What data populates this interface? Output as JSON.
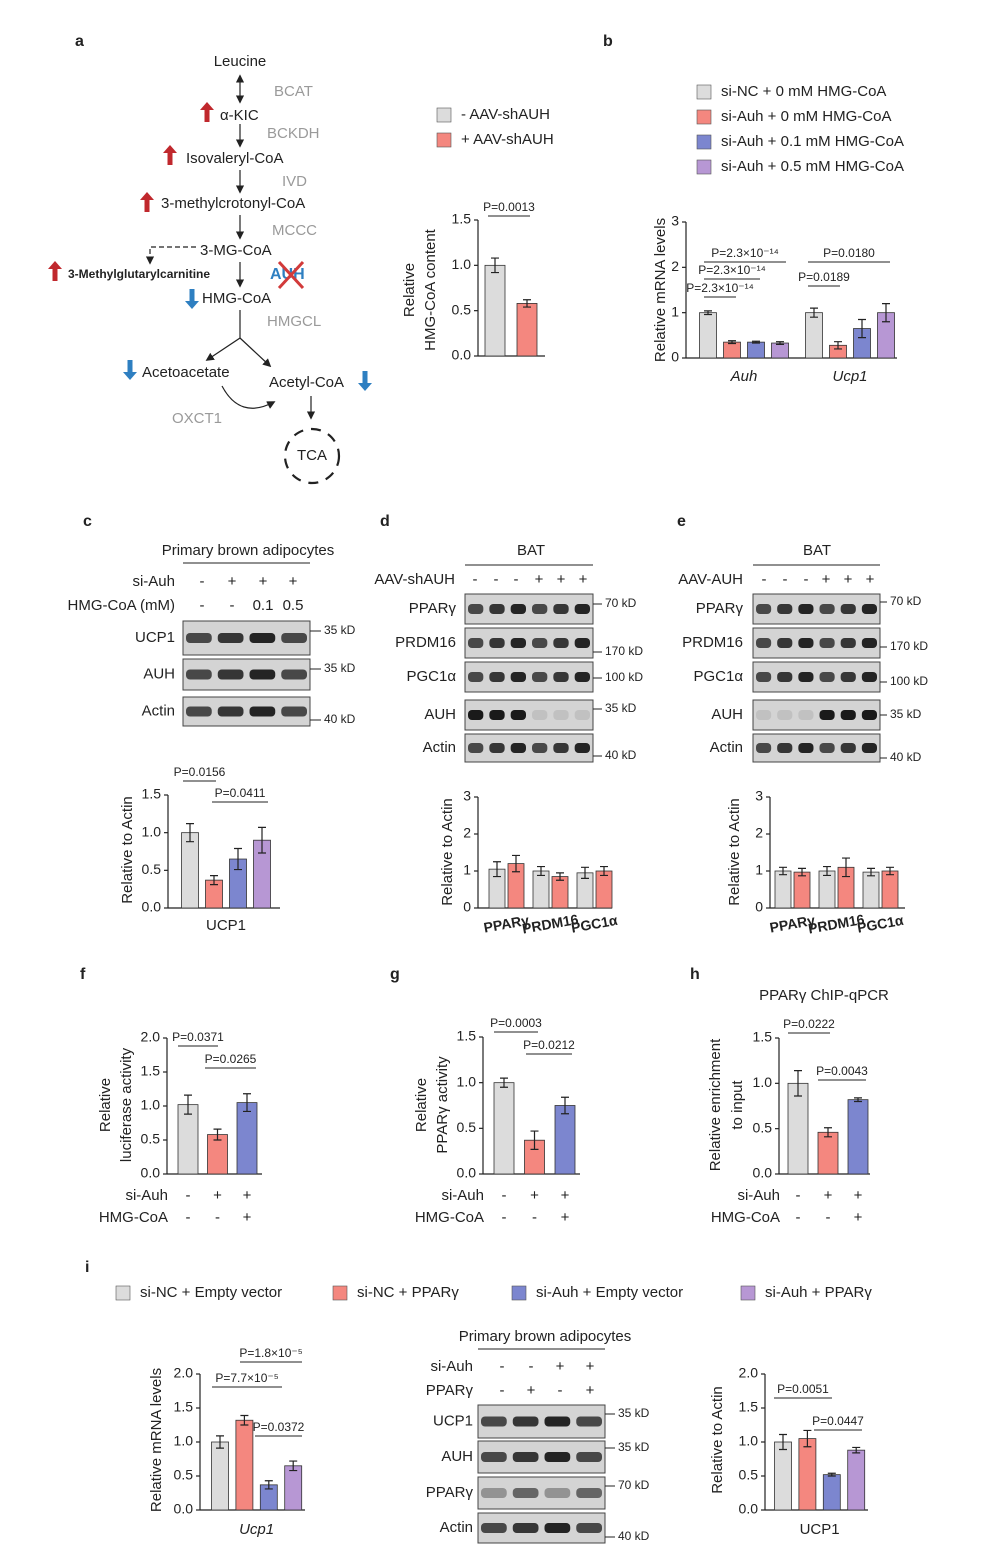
{
  "panel_labels": [
    "a",
    "b",
    "c",
    "d",
    "e",
    "f",
    "g",
    "h",
    "i"
  ],
  "diagram": {
    "nodes": [
      "Leucine",
      "α-KIC",
      "Isovaleryl-CoA",
      "3-methylcrotonyl-CoA",
      "3-MG-CoA",
      "3-Methylglutarylcarnitine",
      "HMG-CoA",
      "Acetoacetate",
      "Acetyl-CoA",
      "TCA"
    ],
    "enzymes": [
      "BCAT",
      "BCKDH",
      "IVD",
      "MCCC",
      "AUH",
      "HMGCL",
      "OXCT1"
    ]
  },
  "chart_data": [
    {
      "type": "bar",
      "ylabel": [
        "Relative",
        "HMG-CoA content"
      ],
      "categories": [
        null
      ],
      "series": [
        {
          "name": "- AAV-shAUH",
          "color": "#dcdcdc",
          "values": [
            1.0
          ],
          "errors": [
            0.08
          ]
        },
        {
          "name": "+ AAV-shAUH",
          "color": "#f4877f",
          "values": [
            0.58
          ],
          "errors": [
            0.04
          ]
        }
      ],
      "ylim": [
        0,
        1.5
      ],
      "yticks": [
        {
          "value": 0,
          "label": "0.0"
        },
        0.5,
        {
          "value": 1,
          "label": "1.0"
        },
        1.5
      ],
      "annotations": [
        "P=0.0013"
      ]
    },
    {
      "type": "bar",
      "ylabel": "Relative mRNA levels",
      "categories": [
        "Auh",
        "Ucp1"
      ],
      "series": [
        {
          "name": "si-NC + 0 mM HMG-CoA",
          "color": "#dcdcdc",
          "values": [
            1.0,
            1.0
          ],
          "errors": [
            0.04,
            0.1
          ]
        },
        {
          "name": "si-Auh + 0 mM HMG-CoA",
          "color": "#f4877f",
          "values": [
            0.35,
            0.28
          ],
          "errors": [
            0.03,
            0.08
          ]
        },
        {
          "name": "si-Auh + 0.1 mM HMG-CoA",
          "color": "#7c86cf",
          "values": [
            0.35,
            0.65
          ],
          "errors": [
            0.02,
            0.2
          ]
        },
        {
          "name": "si-Auh + 0.5 mM HMG-CoA",
          "color": "#b797d4",
          "values": [
            0.33,
            1.0
          ],
          "errors": [
            0.03,
            0.2
          ]
        }
      ],
      "ylim": [
        0,
        3
      ],
      "yticks": [
        0,
        1,
        2,
        3
      ],
      "annotations": [
        "P=2.3×10⁻¹⁴",
        "P=2.3×10⁻¹⁴",
        "P=2.3×10⁻¹⁴",
        "P=0.0189",
        "P=0.0180"
      ]
    },
    {
      "type": "bar",
      "ylabel": "Relative to Actin",
      "categories": [
        "UCP1"
      ],
      "series": [
        {
          "color": "#dcdcdc",
          "values": [
            1.0
          ],
          "errors": [
            0.12
          ]
        },
        {
          "color": "#f4877f",
          "values": [
            0.37
          ],
          "errors": [
            0.06
          ]
        },
        {
          "color": "#7c86cf",
          "values": [
            0.65
          ],
          "errors": [
            0.14
          ]
        },
        {
          "color": "#b797d4",
          "values": [
            0.9
          ],
          "errors": [
            0.17
          ]
        }
      ],
      "ylim": [
        0,
        1.5
      ],
      "yticks": [
        {
          "value": 0,
          "label": "0.0"
        },
        0.5,
        {
          "value": 1,
          "label": "1.0"
        },
        1.5
      ],
      "annotations": [
        "P=0.0156",
        "P=0.0411"
      ]
    },
    {
      "type": "bar",
      "ylabel": "Relative to Actin",
      "categories": [
        "PPARγ",
        "PRDM16",
        "PGC1α"
      ],
      "series": [
        {
          "color": "#dcdcdc",
          "values": [
            1.05,
            1.0,
            0.95
          ],
          "errors": [
            0.2,
            0.12,
            0.15
          ]
        },
        {
          "color": "#f4877f",
          "values": [
            1.2,
            0.85,
            1.0
          ],
          "errors": [
            0.22,
            0.1,
            0.12
          ]
        }
      ],
      "ylim": [
        0,
        3
      ],
      "yticks": [
        0,
        1,
        2,
        3
      ]
    },
    {
      "type": "bar",
      "ylabel": "Relative to Actin",
      "categories": [
        "PPARγ",
        "PRDM16",
        "PGC1α"
      ],
      "series": [
        {
          "color": "#dcdcdc",
          "values": [
            1.0,
            1.0,
            0.97
          ],
          "errors": [
            0.1,
            0.12,
            0.1
          ]
        },
        {
          "color": "#f4877f",
          "values": [
            0.97,
            1.1,
            1.0
          ],
          "errors": [
            0.1,
            0.25,
            0.1
          ]
        }
      ],
      "ylim": [
        0,
        3
      ],
      "yticks": [
        0,
        1,
        2,
        3
      ]
    },
    {
      "type": "bar",
      "ylabel": [
        "Relative",
        "luciferase activity"
      ],
      "categories": [
        null
      ],
      "series": [
        {
          "color": "#dcdcdc",
          "values": [
            1.02
          ],
          "errors": [
            0.14
          ]
        },
        {
          "color": "#f4877f",
          "values": [
            0.58
          ],
          "errors": [
            0.08
          ]
        },
        {
          "color": "#7c86cf",
          "values": [
            1.05
          ],
          "errors": [
            0.13
          ]
        }
      ],
      "ylim": [
        0,
        2
      ],
      "yticks": [
        {
          "value": 0,
          "label": "0.0"
        },
        0.5,
        {
          "value": 1,
          "label": "1.0"
        },
        1.5,
        {
          "value": 2,
          "label": "2.0"
        }
      ],
      "annotations": [
        "P=0.0371",
        "P=0.0265"
      ],
      "conditions": [
        {
          "label": "si-Auh",
          "values": [
            "-",
            "+",
            "+"
          ]
        },
        {
          "label": "HMG-CoA",
          "values": [
            "-",
            "-",
            "+"
          ]
        }
      ]
    },
    {
      "type": "bar",
      "ylabel": [
        "Relative",
        "PPARγ activity"
      ],
      "categories": [
        null
      ],
      "series": [
        {
          "color": "#dcdcdc",
          "values": [
            1.0
          ],
          "errors": [
            0.05
          ]
        },
        {
          "color": "#f4877f",
          "values": [
            0.37
          ],
          "errors": [
            0.1
          ]
        },
        {
          "color": "#7c86cf",
          "values": [
            0.75
          ],
          "errors": [
            0.09
          ]
        }
      ],
      "ylim": [
        0,
        1.5
      ],
      "yticks": [
        {
          "value": 0,
          "label": "0.0"
        },
        0.5,
        {
          "value": 1,
          "label": "1.0"
        },
        1.5
      ],
      "annotations": [
        "P=0.0003",
        "P=0.0212"
      ],
      "conditions": [
        {
          "label": "si-Auh",
          "values": [
            "-",
            "+",
            "+"
          ]
        },
        {
          "label": "HMG-CoA",
          "values": [
            "-",
            "-",
            "+"
          ]
        }
      ]
    },
    {
      "type": "bar",
      "title": "PPARγ ChIP-qPCR",
      "ylabel": [
        "Relative enrichment",
        "to input"
      ],
      "categories": [
        null
      ],
      "series": [
        {
          "color": "#dcdcdc",
          "values": [
            1.0
          ],
          "errors": [
            0.14
          ]
        },
        {
          "color": "#f4877f",
          "values": [
            0.46
          ],
          "errors": [
            0.05
          ]
        },
        {
          "color": "#7c86cf",
          "values": [
            0.82
          ],
          "errors": [
            0.02
          ]
        }
      ],
      "ylim": [
        0,
        1.5
      ],
      "yticks": [
        {
          "value": 0,
          "label": "0.0"
        },
        0.5,
        {
          "value": 1,
          "label": "1.0"
        },
        1.5
      ],
      "annotations": [
        "P=0.0222",
        "P=0.0043"
      ],
      "conditions": [
        {
          "label": "si-Auh",
          "values": [
            "-",
            "+",
            "+"
          ]
        },
        {
          "label": "HMG-CoA",
          "values": [
            "-",
            "-",
            "+"
          ]
        }
      ]
    },
    {
      "type": "bar",
      "ylabel": "Relative mRNA levels",
      "categories": [
        "Ucp1"
      ],
      "series": [
        {
          "name": "si-NC + Empty vector",
          "color": "#dcdcdc",
          "values": [
            1.0
          ],
          "errors": [
            0.09
          ]
        },
        {
          "name": "si-NC + PPARγ",
          "color": "#f4877f",
          "values": [
            1.32
          ],
          "errors": [
            0.07
          ]
        },
        {
          "name": "si-Auh + Empty vector",
          "color": "#7c86cf",
          "values": [
            0.37
          ],
          "errors": [
            0.06
          ]
        },
        {
          "name": "si-Auh + PPARγ",
          "color": "#b797d4",
          "values": [
            0.65
          ],
          "errors": [
            0.07
          ]
        }
      ],
      "ylim": [
        0,
        2
      ],
      "yticks": [
        {
          "value": 0,
          "label": "0.0"
        },
        0.5,
        {
          "value": 1,
          "label": "1.0"
        },
        1.5,
        {
          "value": 2,
          "label": "2.0"
        }
      ],
      "annotations": [
        "P=1.8×10⁻⁵",
        "P=7.7×10⁻⁵",
        "P=0.0372"
      ]
    },
    {
      "type": "bar",
      "ylabel": "Relative to Actin",
      "categories": [
        "UCP1"
      ],
      "series": [
        {
          "color": "#dcdcdc",
          "values": [
            1.0
          ],
          "errors": [
            0.11
          ]
        },
        {
          "color": "#f4877f",
          "values": [
            1.05
          ],
          "errors": [
            0.12
          ]
        },
        {
          "color": "#7c86cf",
          "values": [
            0.52
          ],
          "errors": [
            0.02
          ]
        },
        {
          "color": "#b797d4",
          "values": [
            0.88
          ],
          "errors": [
            0.04
          ]
        }
      ],
      "ylim": [
        0,
        2
      ],
      "yticks": [
        {
          "value": 0,
          "label": "0.0"
        },
        0.5,
        {
          "value": 1,
          "label": "1.0"
        },
        1.5,
        {
          "value": 2,
          "label": "2.0"
        }
      ],
      "annotations": [
        "P=0.0051",
        "P=0.0447"
      ]
    }
  ],
  "blots": [
    {
      "title": "Primary brown adipocytes",
      "conditions": [
        {
          "label": "si-Auh",
          "values": [
            "-",
            "+",
            "+",
            "+"
          ]
        },
        {
          "label": "HMG-CoA (mM)",
          "values": [
            "-",
            "-",
            "0.1",
            "0.5"
          ]
        }
      ],
      "rows": [
        {
          "protein": "UCP1",
          "marker": "35 kD"
        },
        {
          "protein": "AUH",
          "marker": "35 kD"
        },
        {
          "protein": "Actin",
          "marker": "40 kD"
        }
      ]
    },
    {
      "title": "BAT",
      "conditions": [
        {
          "label": "AAV-shAUH",
          "values": [
            "-",
            "-",
            "-",
            "+",
            "+",
            "+"
          ]
        }
      ],
      "rows": [
        {
          "protein": "PPARγ",
          "marker": "70 kD"
        },
        {
          "protein": "PRDM16",
          "marker": "170 kD"
        },
        {
          "protein": "PGC1α",
          "marker": "100 kD"
        },
        {
          "protein": "AUH",
          "marker": "35 kD"
        },
        {
          "protein": "Actin",
          "marker": "40 kD"
        }
      ]
    },
    {
      "title": "BAT",
      "conditions": [
        {
          "label": "AAV-AUH",
          "values": [
            "-",
            "-",
            "-",
            "+",
            "+",
            "+"
          ]
        }
      ],
      "rows": [
        {
          "protein": "PPARγ",
          "marker": "70 kD"
        },
        {
          "protein": "PRDM16",
          "marker": "170 kD"
        },
        {
          "protein": "PGC1α",
          "marker": "100 kD"
        },
        {
          "protein": "AUH",
          "marker": "35 kD"
        },
        {
          "protein": "Actin",
          "marker": "40 kD"
        }
      ]
    },
    {
      "title": "Primary brown adipocytes",
      "conditions": [
        {
          "label": "si-Auh",
          "values": [
            "-",
            "-",
            "+",
            "+"
          ]
        },
        {
          "label": "PPARγ",
          "values": [
            "-",
            "+",
            "-",
            "+"
          ]
        }
      ],
      "rows": [
        {
          "protein": "UCP1",
          "marker": "35 kD"
        },
        {
          "protein": "AUH",
          "marker": "35 kD"
        },
        {
          "protein": "PPARγ",
          "marker": "70 kD"
        },
        {
          "protein": "Actin",
          "marker": "40 kD"
        }
      ]
    }
  ]
}
